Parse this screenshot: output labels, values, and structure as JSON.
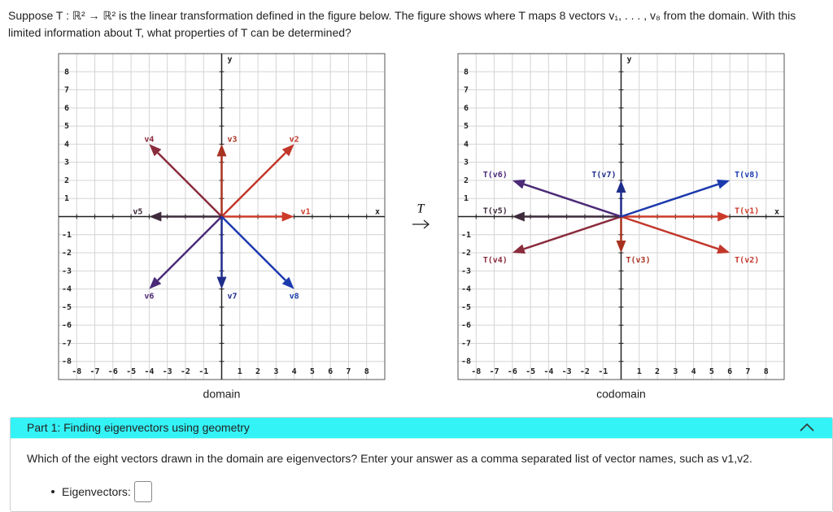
{
  "question": "Suppose T : ℝ² → ℝ² is the linear transformation defined in the figure below. The figure shows where T maps 8 vectors v₁, . . . , v₈ from the domain. With this limited information about T, what properties of T can be determined?",
  "map_label": "T",
  "graphs": [
    {
      "caption": "domain",
      "axis_labels": {
        "x": "x",
        "y": "y"
      },
      "lim": [
        -9,
        9
      ],
      "ticks": [
        -8,
        -7,
        -6,
        -5,
        -4,
        -3,
        -2,
        -1,
        1,
        2,
        3,
        4,
        5,
        6,
        7,
        8
      ],
      "vectors": [
        {
          "name": "v1",
          "color": "#cc3b2a",
          "x": 4,
          "y": 0
        },
        {
          "name": "v2",
          "color": "#c2372a",
          "x": 4,
          "y": 4
        },
        {
          "name": "v3",
          "color": "#a8321f",
          "x": 0,
          "y": 4
        },
        {
          "name": "v4",
          "color": "#8a2c3c",
          "x": -4,
          "y": 4
        },
        {
          "name": "v5",
          "color": "#3d2b3b",
          "x": -4,
          "y": 0
        },
        {
          "name": "v6",
          "color": "#4b2a78",
          "x": -4,
          "y": -4
        },
        {
          "name": "v7",
          "color": "#1e2c8a",
          "x": 0,
          "y": -4
        },
        {
          "name": "v8",
          "color": "#1b3aae",
          "x": 4,
          "y": -4
        }
      ]
    },
    {
      "caption": "codomain",
      "axis_labels": {
        "x": "x",
        "y": "y"
      },
      "lim": [
        -9,
        9
      ],
      "ticks": [
        -8,
        -7,
        -6,
        -5,
        -4,
        -3,
        -2,
        -1,
        1,
        2,
        3,
        4,
        5,
        6,
        7,
        8
      ],
      "vectors": [
        {
          "name": "T(v1)",
          "color": "#cc3b2a",
          "x": 6,
          "y": 0
        },
        {
          "name": "T(v2)",
          "color": "#c2372a",
          "x": 6,
          "y": -2
        },
        {
          "name": "T(v3)",
          "color": "#a8321f",
          "x": 0,
          "y": -2
        },
        {
          "name": "T(v4)",
          "color": "#8a2c3c",
          "x": -6,
          "y": -2
        },
        {
          "name": "T(v5)",
          "color": "#3d2b3b",
          "x": -6,
          "y": 0
        },
        {
          "name": "T(v6)",
          "color": "#4b2a78",
          "x": -6,
          "y": 2
        },
        {
          "name": "T(v7)",
          "color": "#1e2c8a",
          "x": 0,
          "y": 2
        },
        {
          "name": "T(v8)",
          "color": "#1b3aae",
          "x": 6,
          "y": 2
        }
      ]
    }
  ],
  "part": {
    "title": "Part 1: Finding eigenvectors using geometry",
    "prompt": "Which of the eight vectors drawn in the domain are eigenvectors? Enter your answer as a comma separated list of vector names, such as v1,v2.",
    "field_label": "Eigenvectors:"
  }
}
